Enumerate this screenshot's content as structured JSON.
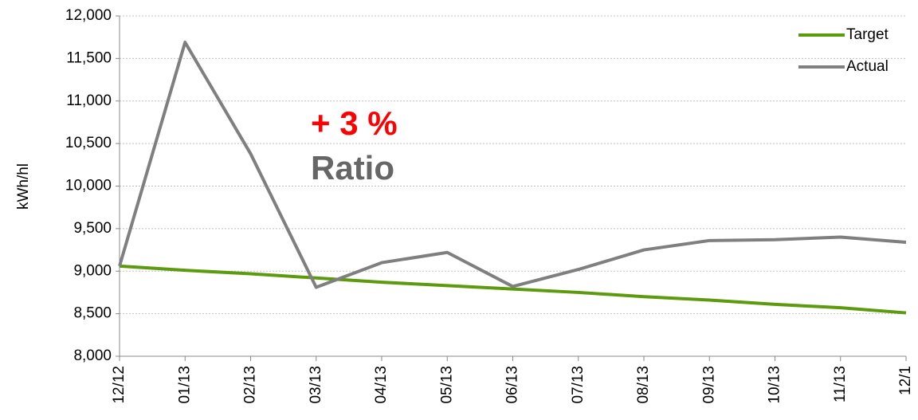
{
  "chart_data": {
    "type": "line",
    "categories": [
      "12/12",
      "01/13",
      "02/13",
      "03/13",
      "04/13",
      "05/13",
      "06/13",
      "07/13",
      "08/13",
      "09/13",
      "10/13",
      "11/13",
      "12/1"
    ],
    "series": [
      {
        "name": "Target",
        "color": "#5c9a0e",
        "values": [
          9060,
          9010,
          8970,
          8920,
          8870,
          8830,
          8790,
          8750,
          8700,
          8660,
          8610,
          8570,
          8510
        ]
      },
      {
        "name": "Actual",
        "color": "#7f7f7f",
        "values": [
          9060,
          11690,
          10380,
          8810,
          9100,
          9220,
          8820,
          9020,
          9250,
          9360,
          9370,
          9400,
          9340
        ]
      }
    ],
    "y_label": "kWh/hl",
    "annotations": [
      "+ 3 %",
      "Ratio"
    ],
    "ylim": [
      8000,
      12000
    ],
    "yticks": [
      {
        "value": 8000,
        "label": "8,000"
      },
      {
        "value": 8500,
        "label": "8,500"
      },
      {
        "value": 9000,
        "label": "9,000"
      },
      {
        "value": 9500,
        "label": "9,500"
      },
      {
        "value": 10000,
        "label": "10,000"
      },
      {
        "value": 10500,
        "label": "10,500"
      },
      {
        "value": 11000,
        "label": "11,000"
      },
      {
        "value": 11500,
        "label": "11,500"
      },
      {
        "value": 12000,
        "label": "12,000"
      }
    ],
    "grid": true,
    "legend": "upper right"
  }
}
